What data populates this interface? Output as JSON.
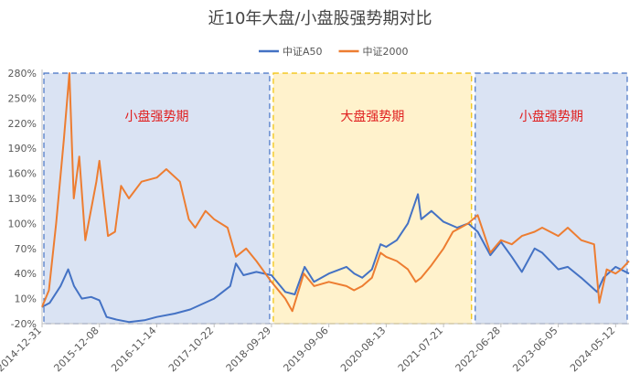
{
  "chart_data": {
    "type": "line",
    "title": "近10年大盘/小盘股强势期对比",
    "legend": {
      "placement": "top",
      "entries": [
        {
          "name": "中证A50",
          "color": "#4472c4"
        },
        {
          "name": "中证2000",
          "color": "#ed7d31"
        }
      ]
    },
    "y_ticks": [
      "280%",
      "250%",
      "220%",
      "190%",
      "160%",
      "130%",
      "100%",
      "70%",
      "40%",
      "10%",
      "-20%"
    ],
    "x_ticks": [
      "2014-12-31",
      "2015-12-08",
      "2016-11-14",
      "2017-10-22",
      "2018-09-29",
      "2019-09-06",
      "2020-08-13",
      "2021-07-21",
      "2022-06-28",
      "2023-06-05",
      "2024-05-12"
    ],
    "ylim": [
      -20,
      280
    ],
    "xlim": [
      "2014-12-31",
      "2024-07-31"
    ],
    "grid": false,
    "regions": [
      {
        "label": "小盘强势期",
        "start": "2014-12-31",
        "end": "2018-09-29",
        "color": "#dae3f3",
        "border": "#4472c4"
      },
      {
        "label": "大盘强势期",
        "start": "2018-09-29",
        "end": "2022-01-15",
        "color": "#fff2cc",
        "border": "#f0c000"
      },
      {
        "label": "小盘强势期",
        "start": "2022-01-15",
        "end": "2024-07-31",
        "color": "#dae3f3",
        "border": "#4472c4"
      }
    ],
    "series": [
      {
        "name": "中证A50",
        "color": "#4472c4",
        "points": [
          [
            "2014-12-31",
            0
          ],
          [
            "2015-02-15",
            5
          ],
          [
            "2015-04-20",
            25
          ],
          [
            "2015-06-05",
            45
          ],
          [
            "2015-07-10",
            25
          ],
          [
            "2015-08-25",
            10
          ],
          [
            "2015-10-20",
            12
          ],
          [
            "2015-12-08",
            8
          ],
          [
            "2016-01-20",
            -12
          ],
          [
            "2016-03-15",
            -15
          ],
          [
            "2016-06-01",
            -18
          ],
          [
            "2016-09-01",
            -16
          ],
          [
            "2016-11-14",
            -12
          ],
          [
            "2017-03-01",
            -8
          ],
          [
            "2017-06-01",
            -3
          ],
          [
            "2017-10-22",
            10
          ],
          [
            "2018-01-26",
            25
          ],
          [
            "2018-03-01",
            52
          ],
          [
            "2018-04-15",
            38
          ],
          [
            "2018-07-01",
            42
          ],
          [
            "2018-09-29",
            38
          ],
          [
            "2018-12-20",
            18
          ],
          [
            "2019-02-15",
            15
          ],
          [
            "2019-04-15",
            48
          ],
          [
            "2019-06-10",
            30
          ],
          [
            "2019-09-06",
            40
          ],
          [
            "2019-12-20",
            48
          ],
          [
            "2020-02-05",
            40
          ],
          [
            "2020-03-23",
            35
          ],
          [
            "2020-05-20",
            45
          ],
          [
            "2020-07-10",
            75
          ],
          [
            "2020-08-13",
            72
          ],
          [
            "2020-10-15",
            80
          ],
          [
            "2020-12-20",
            100
          ],
          [
            "2021-02-18",
            135
          ],
          [
            "2021-03-10",
            105
          ],
          [
            "2021-05-10",
            115
          ],
          [
            "2021-07-21",
            102
          ],
          [
            "2021-10-10",
            95
          ],
          [
            "2021-12-15",
            100
          ],
          [
            "2022-02-10",
            90
          ],
          [
            "2022-04-26",
            62
          ],
          [
            "2022-06-28",
            78
          ],
          [
            "2022-09-01",
            60
          ],
          [
            "2022-10-31",
            42
          ],
          [
            "2023-01-15",
            70
          ],
          [
            "2023-03-01",
            65
          ],
          [
            "2023-06-05",
            45
          ],
          [
            "2023-08-01",
            48
          ],
          [
            "2023-10-20",
            35
          ],
          [
            "2024-01-22",
            18
          ],
          [
            "2024-03-01",
            35
          ],
          [
            "2024-05-12",
            48
          ],
          [
            "2024-07-31",
            40
          ]
        ]
      },
      {
        "name": "中证2000",
        "color": "#ed7d31",
        "points": [
          [
            "2014-12-31",
            0
          ],
          [
            "2015-02-10",
            20
          ],
          [
            "2015-03-25",
            100
          ],
          [
            "2015-05-10",
            200
          ],
          [
            "2015-06-12",
            280
          ],
          [
            "2015-07-08",
            130
          ],
          [
            "2015-08-10",
            180
          ],
          [
            "2015-09-15",
            80
          ],
          [
            "2015-11-20",
            150
          ],
          [
            "2015-12-08",
            175
          ],
          [
            "2016-01-28",
            85
          ],
          [
            "2016-03-10",
            90
          ],
          [
            "2016-04-15",
            145
          ],
          [
            "2016-06-01",
            130
          ],
          [
            "2016-08-15",
            150
          ],
          [
            "2016-11-14",
            155
          ],
          [
            "2017-01-10",
            165
          ],
          [
            "2017-04-01",
            150
          ],
          [
            "2017-05-24",
            105
          ],
          [
            "2017-07-01",
            95
          ],
          [
            "2017-09-01",
            115
          ],
          [
            "2017-10-22",
            105
          ],
          [
            "2018-01-10",
            95
          ],
          [
            "2018-03-01",
            60
          ],
          [
            "2018-05-01",
            70
          ],
          [
            "2018-07-01",
            55
          ],
          [
            "2018-09-29",
            30
          ],
          [
            "2018-12-20",
            10
          ],
          [
            "2019-01-31",
            -5
          ],
          [
            "2019-04-10",
            40
          ],
          [
            "2019-06-10",
            25
          ],
          [
            "2019-09-06",
            30
          ],
          [
            "2019-12-20",
            25
          ],
          [
            "2020-02-03",
            20
          ],
          [
            "2020-03-23",
            25
          ],
          [
            "2020-05-20",
            35
          ],
          [
            "2020-07-10",
            65
          ],
          [
            "2020-08-13",
            60
          ],
          [
            "2020-10-15",
            55
          ],
          [
            "2020-12-20",
            45
          ],
          [
            "2021-02-05",
            30
          ],
          [
            "2021-03-10",
            35
          ],
          [
            "2021-05-10",
            50
          ],
          [
            "2021-07-21",
            70
          ],
          [
            "2021-09-15",
            90
          ],
          [
            "2021-12-15",
            100
          ],
          [
            "2022-02-10",
            110
          ],
          [
            "2022-04-26",
            65
          ],
          [
            "2022-06-28",
            80
          ],
          [
            "2022-09-01",
            75
          ],
          [
            "2022-10-31",
            85
          ],
          [
            "2023-01-15",
            90
          ],
          [
            "2023-03-01",
            95
          ],
          [
            "2023-06-05",
            85
          ],
          [
            "2023-08-01",
            95
          ],
          [
            "2023-10-20",
            80
          ],
          [
            "2024-01-05",
            75
          ],
          [
            "2024-02-05",
            5
          ],
          [
            "2024-03-20",
            45
          ],
          [
            "2024-05-12",
            40
          ],
          [
            "2024-06-15",
            45
          ],
          [
            "2024-07-31",
            55
          ]
        ]
      }
    ]
  }
}
